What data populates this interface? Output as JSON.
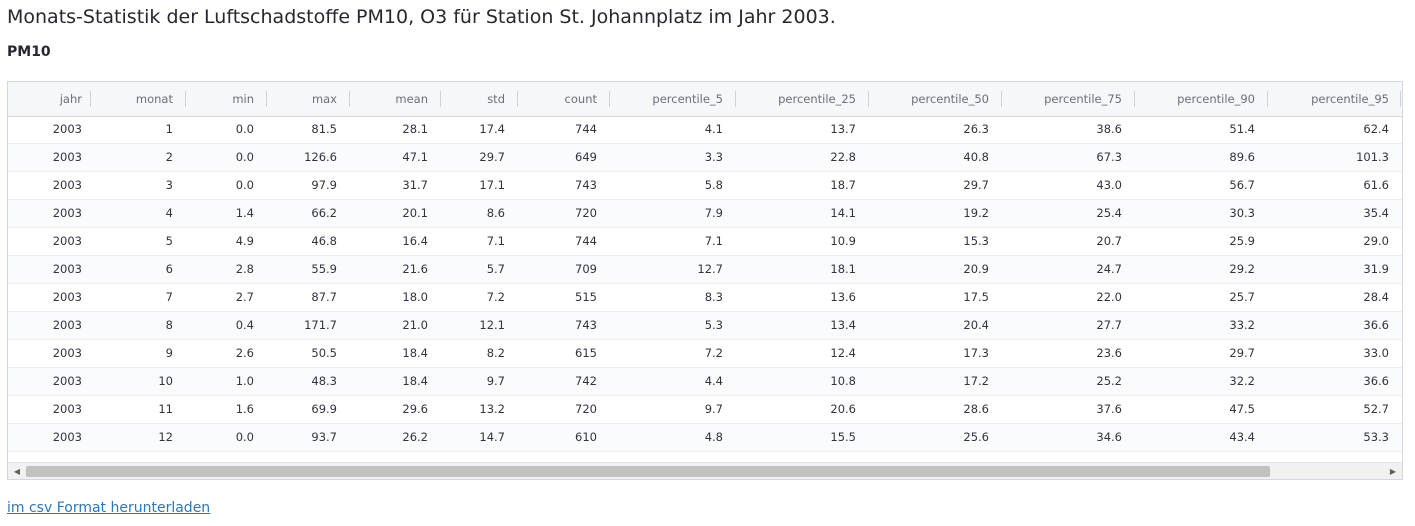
{
  "title": "Monats-Statistik der Luftschadstoffe PM10, O3 für Station St. Johannplatz im Jahr 2003.",
  "subtitle": "PM10",
  "table": {
    "columns": [
      "jahr",
      "monat",
      "min",
      "max",
      "mean",
      "std",
      "count",
      "percentile_5",
      "percentile_25",
      "percentile_50",
      "percentile_75",
      "percentile_90",
      "percentile_95"
    ],
    "rows": [
      [
        "2003",
        "1",
        "0.0",
        "81.5",
        "28.1",
        "17.4",
        "744",
        "4.1",
        "13.7",
        "26.3",
        "38.6",
        "51.4",
        "62.4"
      ],
      [
        "2003",
        "2",
        "0.0",
        "126.6",
        "47.1",
        "29.7",
        "649",
        "3.3",
        "22.8",
        "40.8",
        "67.3",
        "89.6",
        "101.3"
      ],
      [
        "2003",
        "3",
        "0.0",
        "97.9",
        "31.7",
        "17.1",
        "743",
        "5.8",
        "18.7",
        "29.7",
        "43.0",
        "56.7",
        "61.6"
      ],
      [
        "2003",
        "4",
        "1.4",
        "66.2",
        "20.1",
        "8.6",
        "720",
        "7.9",
        "14.1",
        "19.2",
        "25.4",
        "30.3",
        "35.4"
      ],
      [
        "2003",
        "5",
        "4.9",
        "46.8",
        "16.4",
        "7.1",
        "744",
        "7.1",
        "10.9",
        "15.3",
        "20.7",
        "25.9",
        "29.0"
      ],
      [
        "2003",
        "6",
        "2.8",
        "55.9",
        "21.6",
        "5.7",
        "709",
        "12.7",
        "18.1",
        "20.9",
        "24.7",
        "29.2",
        "31.9"
      ],
      [
        "2003",
        "7",
        "2.7",
        "87.7",
        "18.0",
        "7.2",
        "515",
        "8.3",
        "13.6",
        "17.5",
        "22.0",
        "25.7",
        "28.4"
      ],
      [
        "2003",
        "8",
        "0.4",
        "171.7",
        "21.0",
        "12.1",
        "743",
        "5.3",
        "13.4",
        "20.4",
        "27.7",
        "33.2",
        "36.6"
      ],
      [
        "2003",
        "9",
        "2.6",
        "50.5",
        "18.4",
        "8.2",
        "615",
        "7.2",
        "12.4",
        "17.3",
        "23.6",
        "29.7",
        "33.0"
      ],
      [
        "2003",
        "10",
        "1.0",
        "48.3",
        "18.4",
        "9.7",
        "742",
        "4.4",
        "10.8",
        "17.2",
        "25.2",
        "32.2",
        "36.6"
      ],
      [
        "2003",
        "11",
        "1.6",
        "69.9",
        "29.6",
        "13.2",
        "720",
        "9.7",
        "20.6",
        "28.6",
        "37.6",
        "47.5",
        "52.7"
      ],
      [
        "2003",
        "12",
        "0.0",
        "93.7",
        "26.2",
        "14.7",
        "610",
        "4.8",
        "15.5",
        "25.6",
        "34.6",
        "43.4",
        "53.3"
      ]
    ]
  },
  "scrollbar": {
    "left_arrow_icon": "arrow-left-icon",
    "right_arrow_icon": "arrow-right-icon",
    "left_arrow": "◀",
    "right_arrow": "▶"
  },
  "download_link": "im csv Format herunterladen"
}
